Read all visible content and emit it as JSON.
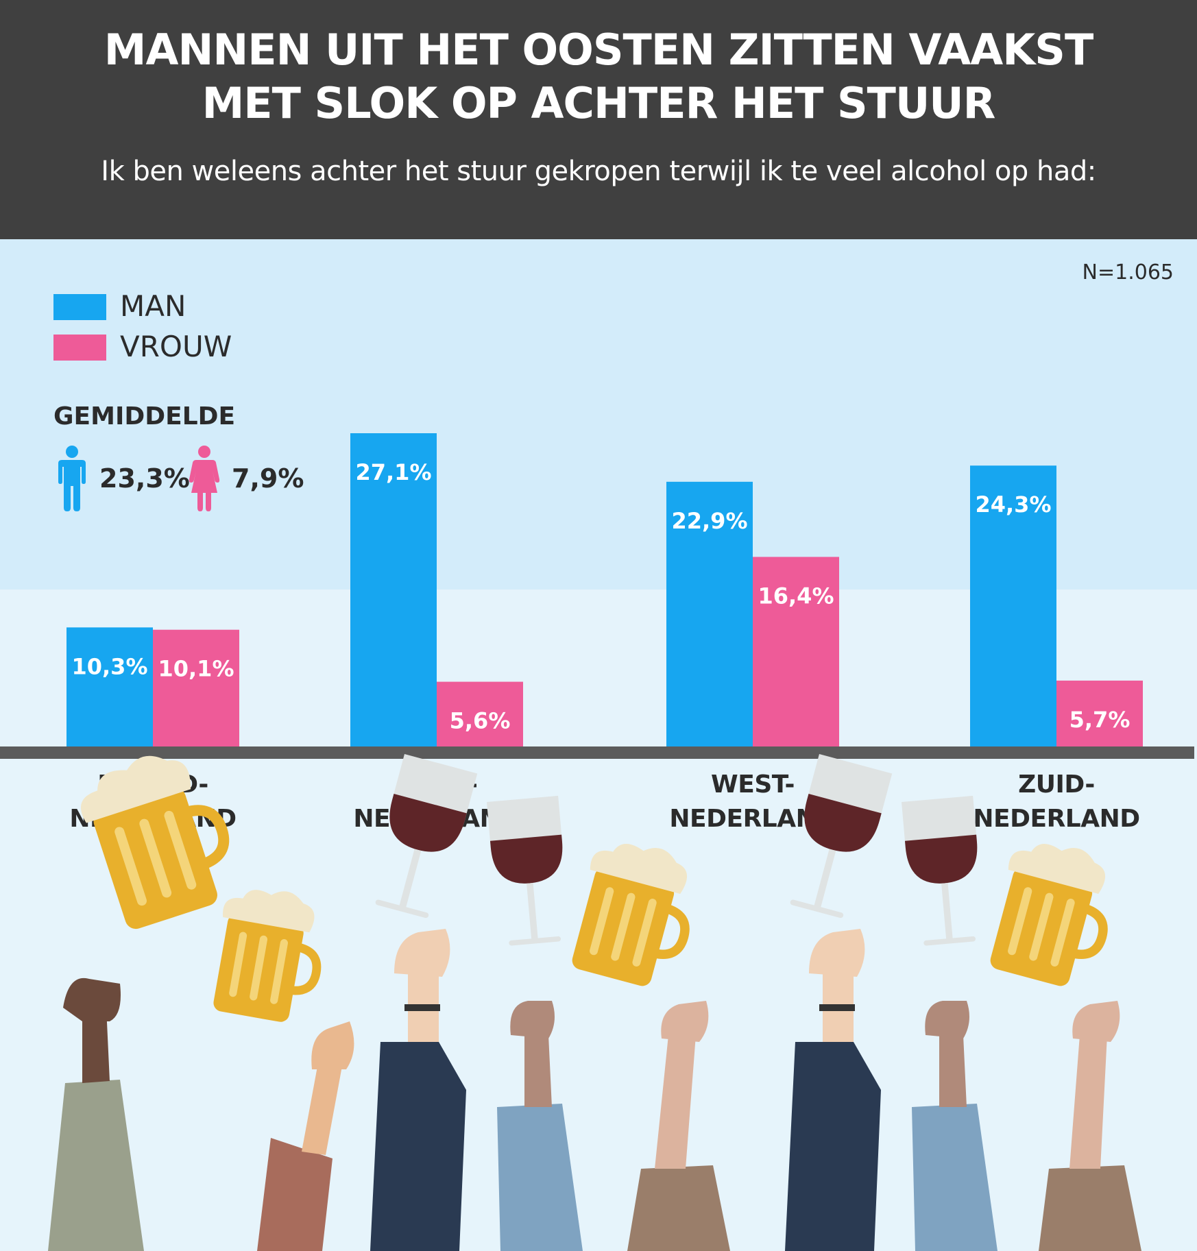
{
  "header": {
    "title_line1": "MANNEN UIT HET OOSTEN ZITTEN VAAKST",
    "title_line2": "MET SLOK OP ACHTER HET STUUR",
    "subtitle": "Ik ben weleens achter het stuur gekropen terwijl ik te veel alcohol op had:"
  },
  "sample_size": "N=1.065",
  "colors": {
    "man": "#17a6f0",
    "vrouw": "#ee5b98",
    "dark": "#404040",
    "axis": "#5b5b5b"
  },
  "legend": [
    {
      "label": "MAN",
      "color": "#17a6f0"
    },
    {
      "label": "VROUW",
      "color": "#ee5b98"
    }
  ],
  "average": {
    "title": "GEMIDDELDE",
    "man_icon": "man-icon",
    "man_value": "23,3%",
    "vrouw_icon": "woman-icon",
    "vrouw_value": "7,9%"
  },
  "chart_data": {
    "type": "bar",
    "categories": [
      "NOORD-NEDERLAND",
      "OOST-NEDERLAND",
      "WEST-NEDERLAND",
      "ZUID-NEDERLAND"
    ],
    "category_lines": [
      [
        "NOORD-",
        "NEDERLAND"
      ],
      [
        "OOST-",
        "NEDERLAND"
      ],
      [
        "WEST-",
        "NEDERLAND"
      ],
      [
        "ZUID-",
        "NEDERLAND"
      ]
    ],
    "series": [
      {
        "name": "MAN",
        "values": [
          10.3,
          27.1,
          22.9,
          24.3
        ],
        "labels": [
          "10,3%",
          "27,1%",
          "22,9%",
          "24,3%"
        ]
      },
      {
        "name": "VROUW",
        "values": [
          10.1,
          5.6,
          16.4,
          5.7
        ],
        "labels": [
          "10,1%",
          "5,6%",
          "16,4%",
          "5,7%"
        ]
      }
    ],
    "ylim": [
      0,
      27.1
    ],
    "grid": false,
    "legend_position": "top-left"
  },
  "illustration": {
    "icons": [
      "beer-mug-icon",
      "wine-glass-icon",
      "raised-hand-icon"
    ]
  }
}
